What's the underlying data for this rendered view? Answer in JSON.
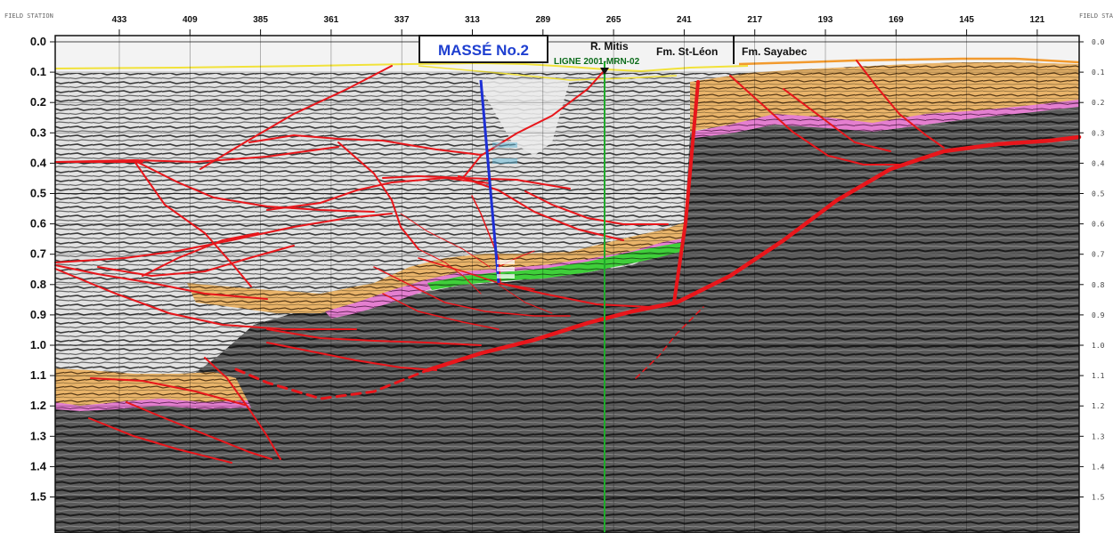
{
  "section": {
    "field_station_label": "FIELD STATION",
    "field_station_label_right": "FIELD STATIO",
    "stations": [
      "433",
      "409",
      "385",
      "361",
      "337",
      "313",
      "289",
      "265",
      "241",
      "217",
      "193",
      "169",
      "145",
      "121"
    ],
    "time_labels_left": [
      "0.0",
      "0.1",
      "0.2",
      "0.3",
      "0.4",
      "0.5",
      "0.6",
      "0.7",
      "0.8",
      "0.9",
      "1.0",
      "1.1",
      "1.2",
      "1.3",
      "1.4",
      "1.5"
    ],
    "time_labels_right": [
      "0.0",
      "0.1",
      "0.2",
      "0.3",
      "0.4",
      "0.5",
      "0.6",
      "0.7",
      "0.8",
      "0.9",
      "1.0",
      "1.1",
      "1.2",
      "1.3",
      "1.4",
      "1.5"
    ],
    "major_time_labels": [
      "0.0",
      "0.5",
      "1.0",
      "1.5"
    ]
  },
  "annotations": {
    "well_name": "MASSÉ No.2",
    "river": "R. Mitis",
    "line_id": "LIGNE 2001-MRN-02",
    "formation_left": "Fm. St-Léon",
    "formation_right": "Fm. Sayabec"
  },
  "colors": {
    "fault": "#e8161b",
    "orange_unit": "#e9b46a",
    "pink_unit": "#e47fd0",
    "green_unit": "#3fcf3a",
    "well": "#1d2fd6",
    "tie_line": "#1faa2a",
    "surface_yellow": "#f1e23a",
    "surface_orange": "#f29a2e"
  }
}
